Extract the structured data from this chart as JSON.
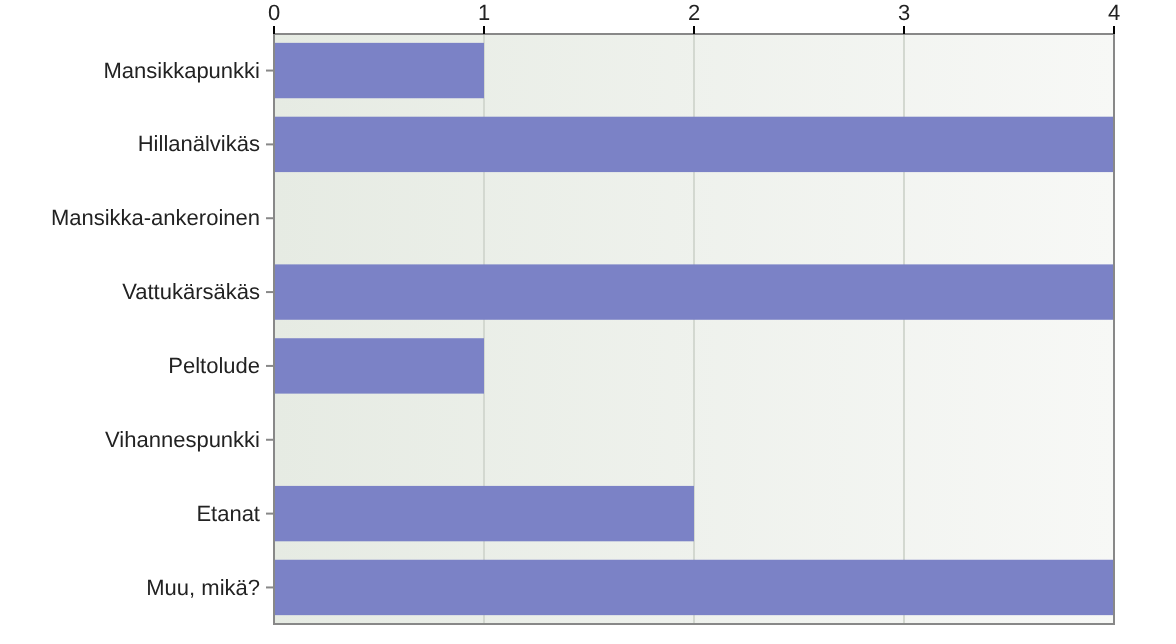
{
  "chart_data": {
    "type": "bar",
    "orientation": "horizontal",
    "categories": [
      "Mansikkapunkki",
      "Hillanälvikäs",
      "Mansikka-ankeroinen",
      "Vattukärsäkäs",
      "Peltolude",
      "Vihannespunkki",
      "Etanat",
      "Muu, mikä?"
    ],
    "values": [
      1,
      4,
      0,
      4,
      1,
      0,
      2,
      4
    ],
    "color": "#7b82c6",
    "xlim": [
      0,
      4
    ],
    "xticks": [
      0,
      1,
      2,
      3,
      4
    ],
    "grid": "x"
  }
}
